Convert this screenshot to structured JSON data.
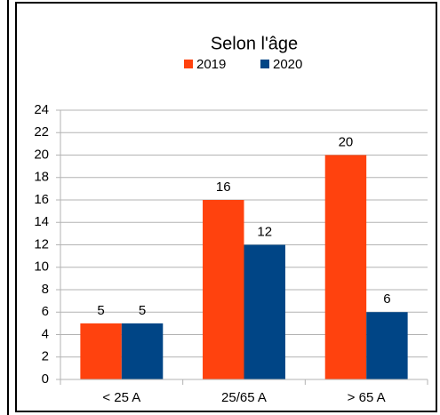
{
  "chart_data": {
    "type": "bar",
    "title": "Selon l'âge",
    "categories": [
      "< 25 A",
      "25/65 A",
      "> 65 A"
    ],
    "series": [
      {
        "name": "2019",
        "color": "#ff420e",
        "values": [
          5,
          16,
          20
        ]
      },
      {
        "name": "2020",
        "color": "#004586",
        "values": [
          5,
          12,
          6
        ]
      }
    ],
    "ylim": [
      0,
      24
    ],
    "yticks": [
      0,
      2,
      4,
      6,
      8,
      10,
      12,
      14,
      16,
      18,
      20,
      22,
      24
    ],
    "grid": true,
    "legend": "top",
    "data_labels": true
  }
}
